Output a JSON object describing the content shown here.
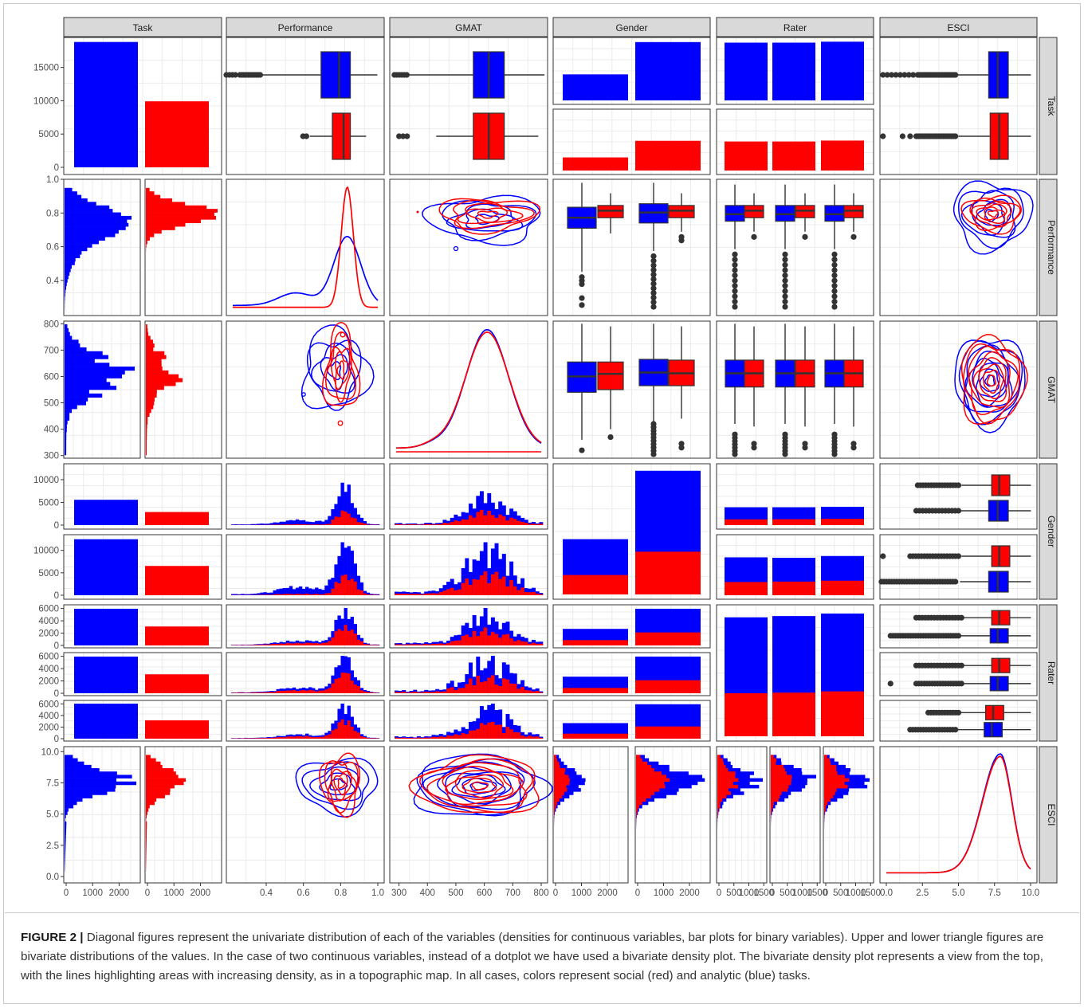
{
  "caption": {
    "label": "FIGURE 2 |",
    "text": "Diagonal figures represent the univariate distribution of each of the variables (densities for continuous variables, bar plots for binary variables). Upper and lower triangle figures are bivariate distributions of the values. In the case of two continuous variables, instead of a dotplot we have used a bivariate density plot. The bivariate density plot represents a view from the top, with the lines highlighting areas with increasing density, as in a topographic map. In all cases, colors represent social (red) and analytic (blue) tasks."
  },
  "colors": {
    "analytic": "#0000ff",
    "social": "#ff0000",
    "strip_fill": "#d9d9d9",
    "grid": "#ebebeb",
    "box_line": "#333333",
    "outlier": "#333333"
  },
  "chart_data": {
    "type": "pairs-matrix",
    "variables": [
      "Task",
      "Performance",
      "GMAT",
      "Gender",
      "Rater",
      "ESCI"
    ],
    "legend": [
      {
        "name": "Analytic",
        "color": "#0000ff"
      },
      {
        "name": "Social",
        "color": "#ff0000"
      }
    ],
    "row_ticks": {
      "Task": [
        "0",
        "5000",
        "10000",
        "15000"
      ],
      "Performance": [
        "0.4",
        "0.6",
        "0.8",
        "1.0"
      ],
      "GMAT": [
        "300",
        "400",
        "500",
        "600",
        "700",
        "800"
      ],
      "Gender": [
        "0",
        "5000",
        "10000"
      ],
      "Rater": [
        "0",
        "2000",
        "4000",
        "6000"
      ],
      "ESCI": [
        "0.0",
        "2.5",
        "5.0",
        "7.5",
        "10.0"
      ]
    },
    "column_ticks": {
      "Task": [
        "0",
        "1000",
        "2000"
      ],
      "Performance": [
        "0.4",
        "0.6",
        "0.8",
        "1.0"
      ],
      "GMAT": [
        "300",
        "400",
        "500",
        "600",
        "700",
        "800"
      ],
      "Gender": [
        "0",
        "1000",
        "2000"
      ],
      "Rater": [
        "0",
        "500",
        "1000",
        "1500"
      ],
      "ESCI": [
        "0.0",
        "2.5",
        "5.0",
        "7.5",
        "10.0"
      ]
    },
    "task_counts": {
      "analytic": 18800,
      "social": 9900
    },
    "gender_by_task": {
      "analytic": {
        "female": 5800,
        "male": 13000
      },
      "social": {
        "female": 3000,
        "male": 6800
      }
    },
    "rater_by_task": {
      "analytic": [
        6200,
        6200,
        6300
      ],
      "social": [
        3200,
        3200,
        3300
      ]
    },
    "performance_box": {
      "analytic": {
        "q1": 0.72,
        "median": 0.8,
        "q3": 0.85,
        "lo": 0.36,
        "hi": 0.97
      },
      "social": {
        "q1": 0.77,
        "median": 0.82,
        "q3": 0.85,
        "lo": 0.67,
        "hi": 0.92
      }
    },
    "gmat_box": {
      "analytic": {
        "q1": 560,
        "median": 610,
        "q3": 660,
        "lo": 350,
        "hi": 790
      },
      "social": {
        "q1": 560,
        "median": 610,
        "q3": 660,
        "lo": 440,
        "hi": 770
      }
    },
    "esci_box": {
      "analytic": {
        "q1": 7.2,
        "median": 7.8,
        "q3": 8.5,
        "lo": 5.1,
        "hi": 10
      },
      "social": {
        "q1": 7.3,
        "median": 7.9,
        "q3": 8.5,
        "lo": 5.2,
        "hi": 10
      }
    },
    "esci_density_peak": 7.9,
    "performance_density_peak": {
      "analytic": 0.82,
      "social": 0.82
    },
    "gmat_density_peak": 610
  }
}
